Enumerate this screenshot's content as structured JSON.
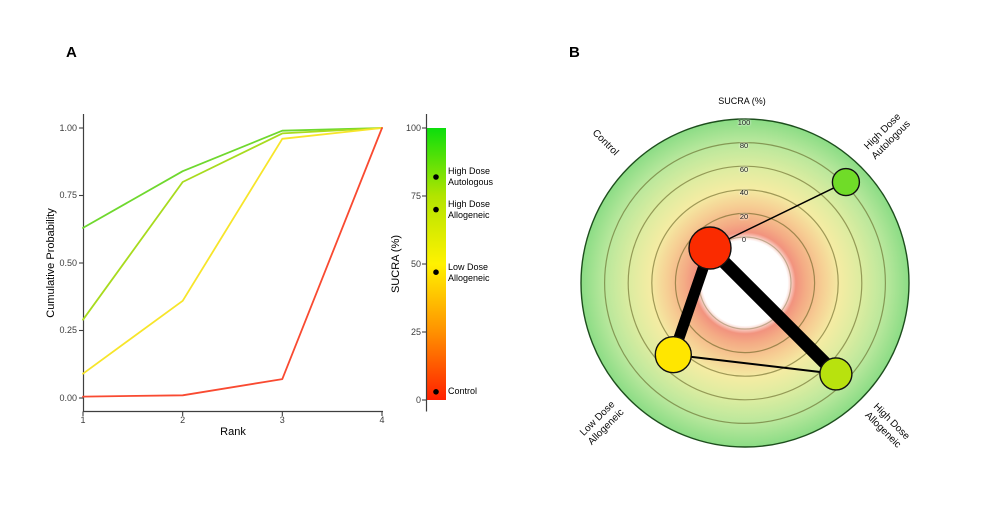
{
  "panels": {
    "a": {
      "label": "A",
      "y_axis": {
        "title": "Cumulative Probability",
        "tick_labels": [
          "1.00",
          "0.75",
          "0.50",
          "0.25",
          "0.00"
        ]
      },
      "x_axis": {
        "title": "Rank",
        "tick_labels": [
          "1",
          "2",
          "3",
          "4"
        ]
      },
      "colorbar": {
        "title": "SUCRA (%)",
        "tick_labels": [
          "100",
          "75",
          "50",
          "25",
          "0"
        ],
        "entries": [
          {
            "label": "High Dose\nAutologous",
            "value": 82
          },
          {
            "label": "High Dose\nAllogeneic",
            "value": 70
          },
          {
            "label": "Low Dose\nAllogeneic",
            "value": 47
          },
          {
            "label": "Control",
            "value": 3
          }
        ]
      }
    },
    "b": {
      "label": "B",
      "title": "SUCRA (%)",
      "ring_labels": [
        "100",
        "80",
        "60",
        "40",
        "20",
        "0"
      ],
      "node_labels": {
        "control": "Control",
        "high_dose_autologous": "High Dose\nAutologous",
        "low_dose_allogeneic": "Low Dose\nAllogeneic",
        "high_dose_allogeneic": "High Dose\nAllogeneic"
      }
    }
  },
  "chart_data": [
    {
      "type": "line",
      "title": "Cumulative ranking probability (SUCRA) curves",
      "xlabel": "Rank",
      "ylabel": "Cumulative Probability",
      "x": [
        1,
        2,
        3,
        4
      ],
      "ylim": [
        0,
        1
      ],
      "xlim": [
        1,
        4
      ],
      "grid": false,
      "series": [
        {
          "name": "High Dose Autologous",
          "sucra": 82,
          "values": [
            0.63,
            0.84,
            0.99,
            1.0
          ],
          "line_color": "#6FD82E"
        },
        {
          "name": "High Dose Allogeneic",
          "sucra": 70,
          "values": [
            0.29,
            0.8,
            0.98,
            1.0
          ],
          "line_color": "#A8DB1E"
        },
        {
          "name": "Low Dose Allogeneic",
          "sucra": 47,
          "values": [
            0.09,
            0.36,
            0.96,
            1.0
          ],
          "line_color": "#F7E52A"
        },
        {
          "name": "Control",
          "sucra": 3,
          "values": [
            0.005,
            0.01,
            0.07,
            1.0
          ],
          "line_color": "#F94A31"
        }
      ],
      "colorbar": {
        "label": "SUCRA (%)",
        "ticks": [
          0,
          25,
          50,
          75,
          100
        ],
        "stops": [
          {
            "at": 0,
            "color": "#FF2000"
          },
          {
            "at": 25,
            "color": "#FF9100"
          },
          {
            "at": 50,
            "color": "#FFF200"
          },
          {
            "at": 75,
            "color": "#B2E400"
          },
          {
            "at": 100,
            "color": "#0CDE0C"
          }
        ]
      }
    },
    {
      "type": "radial-network",
      "title": "SUCRA (%)",
      "ring_ticks": [
        0,
        20,
        40,
        60,
        80,
        100
      ],
      "nodes": [
        {
          "name": "Control",
          "sucra": 3,
          "angle_deg": 135,
          "color": "#FA2B00",
          "size": 21
        },
        {
          "name": "High Dose Autologous",
          "sucra": 82,
          "angle_deg": 45,
          "color": "#70DC28",
          "size": 13.5
        },
        {
          "name": "Low Dose Allogeneic",
          "sucra": 47,
          "angle_deg": 225,
          "color": "#FFE600",
          "size": 18
        },
        {
          "name": "High Dose Allogeneic",
          "sucra": 70,
          "angle_deg": 315,
          "color": "#B8E20E",
          "size": 16
        }
      ],
      "edges": [
        {
          "from": "Control",
          "to": "High Dose Autologous",
          "width": 1.5
        },
        {
          "from": "Low Dose Allogeneic",
          "to": "High Dose Allogeneic",
          "width": 2
        },
        {
          "from": "Control",
          "to": "Low Dose Allogeneic",
          "width": 11
        },
        {
          "from": "Control",
          "to": "High Dose Allogeneic",
          "width": 13
        }
      ]
    }
  ]
}
